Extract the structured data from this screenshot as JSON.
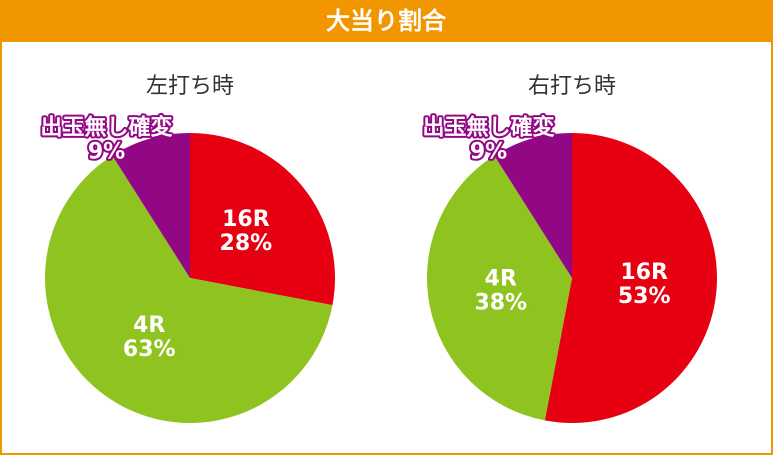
{
  "header": {
    "title": "大当り割合"
  },
  "chart_data": [
    {
      "type": "pie",
      "title": "左打ち時",
      "categories": [
        "16R",
        "4R",
        "出玉無し確変"
      ],
      "values": [
        28,
        63,
        9
      ],
      "value_labels": [
        "28%",
        "63%",
        "9%"
      ],
      "colors": [
        "#e60012",
        "#8fc31f",
        "#920783"
      ]
    },
    {
      "type": "pie",
      "title": "右打ち時",
      "categories": [
        "16R",
        "4R",
        "出玉無し確変"
      ],
      "values": [
        53,
        38,
        9
      ],
      "value_labels": [
        "53%",
        "38%",
        "9%"
      ],
      "colors": [
        "#e60012",
        "#8fc31f",
        "#920783"
      ]
    }
  ]
}
